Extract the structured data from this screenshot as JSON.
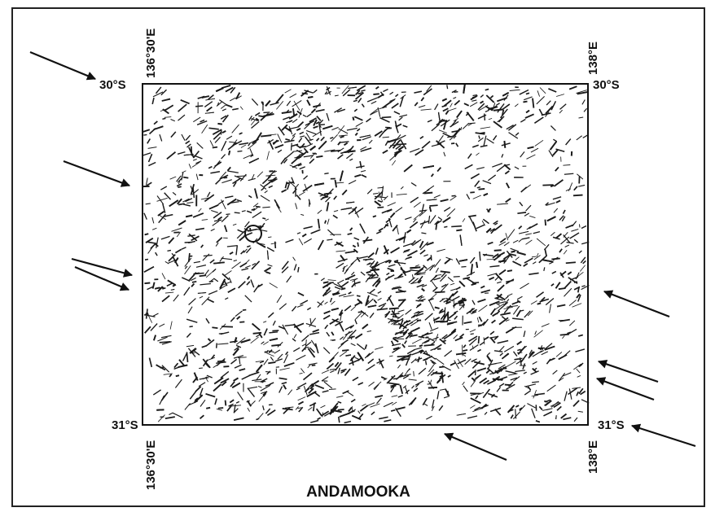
{
  "map": {
    "title": "ANDAMOOKA",
    "corners": {
      "top_left": {
        "latitude": "30°S",
        "longitude": "136°30'E"
      },
      "top_right": {
        "latitude": "30°S",
        "longitude": "138°E"
      },
      "bottom_left": {
        "latitude": "31°S",
        "longitude": "136°30'E"
      },
      "bottom_right": {
        "latitude": "31°S",
        "longitude": "138°E"
      }
    }
  }
}
